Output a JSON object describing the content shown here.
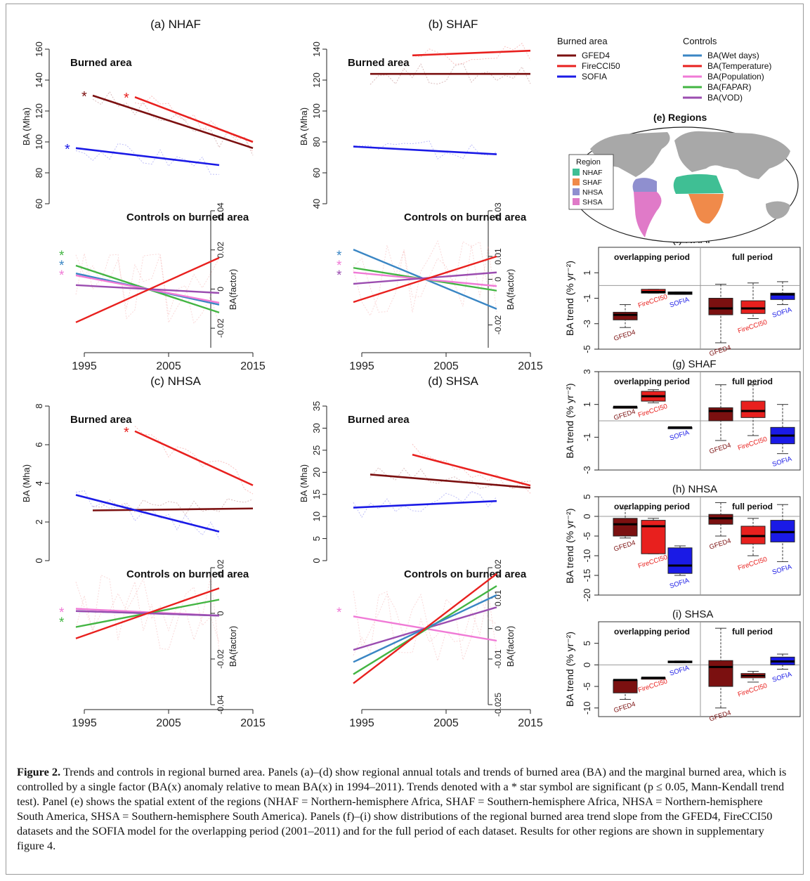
{
  "figure": {
    "caption_label": "Figure 2.",
    "caption_text": " Trends and controls in regional burned area. Panels (a)–(d) show regional annual totals and trends of burned area (BA) and the marginal burned area, which is controlled by a single factor (BA(x) anomaly relative to mean BA(x) in 1994–2011). Trends denoted with a * star symbol are significant (p ≤ 0.05, Mann-Kendall trend test). Panel (e) shows the spatial extent of the regions (NHAF = Northern-hemisphere Africa, SHAF = Southern-hemisphere Africa, NHSA = Northern-hemisphere South America, SHSA = Southern-hemisphere South America). Panels (f)–(i) show distributions of the regional burned area trend slope from the GFED4, FireCCI50 datasets and the SOFIA model for the overlapping period (2001–2011) and for the full period of each dataset. Results for other regions are shown in supplementary figure 4."
  },
  "legend": {
    "burned_title": "Burned area",
    "controls_title": "Controls",
    "burned_items": [
      {
        "label": "GFED4",
        "color": "#7b1010"
      },
      {
        "label": "FireCCI50",
        "color": "#e8201e"
      },
      {
        "label": "SOFIA",
        "color": "#1a1ae6"
      }
    ],
    "control_items": [
      {
        "label": "BA(Wet days)",
        "color": "#3a86c4"
      },
      {
        "label": "BA(Temperature)",
        "color": "#e8201e"
      },
      {
        "label": "BA(Population)",
        "color": "#f07ad6"
      },
      {
        "label": "BA(FAPAR)",
        "color": "#43b543"
      },
      {
        "label": "BA(VOD)",
        "color": "#9b4db0"
      }
    ]
  },
  "map": {
    "title": "(e) Regions",
    "legend_title": "Region",
    "regions": [
      {
        "label": "NHAF",
        "color": "#3fbf94"
      },
      {
        "label": "SHAF",
        "color": "#f08a4a"
      },
      {
        "label": "NHSA",
        "color": "#8f8fcf"
      },
      {
        "label": "SHSA",
        "color": "#e07ac8"
      }
    ]
  },
  "chart_data": [
    {
      "id": "a",
      "type": "line",
      "title": "(a) NHAF",
      "xlabel": "",
      "ylabel": "BA (Mha)",
      "ylabel2": "BA(factor)",
      "top_label": "Burned area",
      "bottom_label": "Controls on burned area",
      "x_ticks": [
        "1995",
        "2005",
        "2015"
      ],
      "ylim": [
        60,
        160
      ],
      "y_ticks": [
        "60",
        "80",
        "100",
        "120",
        "140",
        "160"
      ],
      "ylim2": [
        -0.03,
        0.04
      ],
      "y2_ticks": [
        "-0.02",
        "0",
        "0.02",
        "0.04"
      ],
      "trends": [
        {
          "series": "GFED4",
          "x": [
            1996,
            2015
          ],
          "y": [
            130,
            96
          ],
          "significant": true
        },
        {
          "series": "FireCCI50",
          "x": [
            2001,
            2015
          ],
          "y": [
            129,
            100
          ],
          "significant": true
        },
        {
          "series": "SOFIA",
          "x": [
            1994,
            2011
          ],
          "y": [
            96,
            85
          ],
          "significant": true
        }
      ],
      "control_trends": [
        {
          "series": "BA(FAPAR)",
          "x": [
            1994,
            2011
          ],
          "y": [
            0.012,
            -0.012
          ],
          "significant": true
        },
        {
          "series": "BA(Wet days)",
          "x": [
            1994,
            2011
          ],
          "y": [
            0.008,
            -0.008
          ],
          "significant": true
        },
        {
          "series": "BA(Population)",
          "x": [
            1994,
            2011
          ],
          "y": [
            0.007,
            -0.007
          ],
          "significant": true
        },
        {
          "series": "BA(VOD)",
          "x": [
            1994,
            2011
          ],
          "y": [
            0.002,
            -0.002
          ],
          "significant": false
        },
        {
          "series": "BA(Temperature)",
          "x": [
            1994,
            2011
          ],
          "y": [
            -0.017,
            0.016
          ],
          "significant": false
        }
      ]
    },
    {
      "id": "b",
      "type": "line",
      "title": "(b) SHAF",
      "xlabel": "",
      "ylabel": "BA (Mha)",
      "ylabel2": "BA(factor)",
      "top_label": "Burned area",
      "bottom_label": "Controls on burned area",
      "x_ticks": [
        "1995",
        "2005",
        "2015"
      ],
      "ylim": [
        40,
        140
      ],
      "y_ticks": [
        "40",
        "60",
        "80",
        "100",
        "120",
        "140"
      ],
      "ylim2": [
        -0.03,
        0.03
      ],
      "y2_ticks": [
        "-0.02",
        "0",
        "0.01",
        "0.03"
      ],
      "trends": [
        {
          "series": "GFED4",
          "x": [
            1996,
            2015
          ],
          "y": [
            124,
            124
          ],
          "significant": false
        },
        {
          "series": "FireCCI50",
          "x": [
            2001,
            2015
          ],
          "y": [
            136,
            139
          ],
          "significant": false
        },
        {
          "series": "SOFIA",
          "x": [
            1994,
            2011
          ],
          "y": [
            77,
            72
          ],
          "significant": false
        }
      ],
      "control_trends": [
        {
          "series": "BA(Wet days)",
          "x": [
            1994,
            2011
          ],
          "y": [
            0.013,
            -0.013
          ],
          "significant": true
        },
        {
          "series": "BA(FAPAR)",
          "x": [
            1994,
            2011
          ],
          "y": [
            0.005,
            -0.005
          ],
          "significant": false
        },
        {
          "series": "BA(Population)",
          "x": [
            1994,
            2011
          ],
          "y": [
            0.003,
            -0.003
          ],
          "significant": true
        },
        {
          "series": "BA(VOD)",
          "x": [
            1994,
            2011
          ],
          "y": [
            -0.002,
            0.003
          ],
          "significant": true
        },
        {
          "series": "BA(Temperature)",
          "x": [
            1994,
            2011
          ],
          "y": [
            -0.01,
            0.01
          ],
          "significant": false
        }
      ]
    },
    {
      "id": "c",
      "type": "line",
      "title": "(c) NHSA",
      "xlabel": "",
      "ylabel": "BA (Mha)",
      "ylabel2": "BA(factor)",
      "top_label": "Burned area",
      "bottom_label": "Controls on burned area",
      "x_ticks": [
        "1995",
        "2005",
        "2015"
      ],
      "ylim": [
        0,
        8
      ],
      "y_ticks": [
        "0",
        "2",
        "4",
        "6",
        "8"
      ],
      "ylim2": [
        -0.04,
        0.02
      ],
      "y2_ticks": [
        "-0.04",
        "-0.02",
        "0",
        "0.02"
      ],
      "trends": [
        {
          "series": "GFED4",
          "x": [
            1996,
            2015
          ],
          "y": [
            2.6,
            2.7
          ],
          "significant": false
        },
        {
          "series": "FireCCI50",
          "x": [
            2001,
            2015
          ],
          "y": [
            6.7,
            3.9
          ],
          "significant": true
        },
        {
          "series": "SOFIA",
          "x": [
            1994,
            2011
          ],
          "y": [
            3.4,
            1.5
          ],
          "significant": false
        }
      ],
      "control_trends": [
        {
          "series": "BA(Population)",
          "x": [
            1994,
            2011
          ],
          "y": [
            0.002,
            -0.001
          ],
          "significant": true
        },
        {
          "series": "BA(FAPAR)",
          "x": [
            1994,
            2011
          ],
          "y": [
            -0.006,
            0.006
          ],
          "significant": true
        },
        {
          "series": "BA(Wet days)",
          "x": [
            1994,
            2011
          ],
          "y": [
            0.001,
            -0.001
          ],
          "significant": false
        },
        {
          "series": "BA(VOD)",
          "x": [
            1994,
            2011
          ],
          "y": [
            0.001,
            -0.001
          ],
          "significant": false
        },
        {
          "series": "BA(Temperature)",
          "x": [
            1994,
            2011
          ],
          "y": [
            -0.011,
            0.011
          ],
          "significant": false
        }
      ]
    },
    {
      "id": "d",
      "type": "line",
      "title": "(d) SHSA",
      "xlabel": "",
      "ylabel": "BA (Mha)",
      "ylabel2": "BA(factor)",
      "top_label": "Burned area",
      "bottom_label": "Controls on burned area",
      "x_ticks": [
        "1995",
        "2005",
        "2015"
      ],
      "ylim": [
        0,
        35
      ],
      "y_ticks": [
        "0",
        "5",
        "10",
        "15",
        "20",
        "25",
        "30",
        "35"
      ],
      "ylim2": [
        -0.025,
        0.02
      ],
      "y2_ticks": [
        "-0.025",
        "-0.01",
        "0",
        "0.01",
        "0.02"
      ],
      "trends": [
        {
          "series": "GFED4",
          "x": [
            1996,
            2015
          ],
          "y": [
            19.5,
            16.5
          ],
          "significant": false
        },
        {
          "series": "FireCCI50",
          "x": [
            2001,
            2015
          ],
          "y": [
            24,
            17
          ],
          "significant": false
        },
        {
          "series": "SOFIA",
          "x": [
            1994,
            2011
          ],
          "y": [
            12,
            13.5
          ],
          "significant": false
        }
      ],
      "control_trends": [
        {
          "series": "BA(Population)",
          "x": [
            1994,
            2011
          ],
          "y": [
            0.004,
            -0.004
          ],
          "significant": true
        },
        {
          "series": "BA(VOD)",
          "x": [
            1994,
            2011
          ],
          "y": [
            -0.007,
            0.007
          ],
          "significant": false
        },
        {
          "series": "BA(FAPAR)",
          "x": [
            1994,
            2011
          ],
          "y": [
            -0.015,
            0.014
          ],
          "significant": false
        },
        {
          "series": "BA(Wet days)",
          "x": [
            1994,
            2011
          ],
          "y": [
            -0.011,
            0.011
          ],
          "significant": false
        },
        {
          "series": "BA(Temperature)",
          "x": [
            1994,
            2011
          ],
          "y": [
            -0.018,
            0.018
          ],
          "significant": false
        }
      ]
    },
    {
      "id": "f",
      "type": "box",
      "title": "(f) NHAF",
      "ylabel": "BA trend (% yr⁻²)",
      "left_label": "overlapping period",
      "right_label": "full period",
      "ylim": [
        -5,
        3
      ],
      "y_ticks": [
        "-5",
        "-3",
        "-1",
        "1"
      ],
      "boxes": [
        {
          "name": "GFED4",
          "group": "overlap",
          "color": "#7b1010",
          "min": -3.3,
          "q1": -2.7,
          "median": -2.3,
          "q3": -2.1,
          "max": -1.5
        },
        {
          "name": "FireCCI50",
          "group": "overlap",
          "color": "#e8201e",
          "min": -0.6,
          "q1": -0.6,
          "median": -0.5,
          "q3": -0.3,
          "max": -0.3
        },
        {
          "name": "SOFIA",
          "group": "overlap",
          "color": "#1a1ae6",
          "min": -0.7,
          "q1": -0.7,
          "median": -0.6,
          "q3": -0.5,
          "max": -0.5
        },
        {
          "name": "GFED4",
          "group": "full",
          "color": "#7b1010",
          "min": -4.5,
          "q1": -2.3,
          "median": -1.8,
          "q3": -1.0,
          "max": 0.1
        },
        {
          "name": "FireCCI50",
          "group": "full",
          "color": "#e8201e",
          "min": -2.6,
          "q1": -2.2,
          "median": -1.8,
          "q3": -1.2,
          "max": 0.2
        },
        {
          "name": "SOFIA",
          "group": "full",
          "color": "#1a1ae6",
          "min": -1.5,
          "q1": -1.1,
          "median": -0.7,
          "q3": -0.6,
          "max": 0.3
        }
      ]
    },
    {
      "id": "g",
      "type": "box",
      "title": "(g) SHAF",
      "ylabel": "BA trend (% yr⁻²)",
      "left_label": "overlapping period",
      "right_label": "full period",
      "ylim": [
        -3,
        3
      ],
      "y_ticks": [
        "-3",
        "-1",
        "1",
        "3"
      ],
      "boxes": [
        {
          "name": "GFED4",
          "group": "overlap",
          "color": "#7b1010",
          "min": 0.85,
          "q1": 0.85,
          "median": 0.85,
          "q3": 0.85,
          "max": 0.85
        },
        {
          "name": "FireCCI50",
          "group": "overlap",
          "color": "#e8201e",
          "min": 1.1,
          "q1": 1.2,
          "median": 1.5,
          "q3": 1.8,
          "max": 1.9
        },
        {
          "name": "SOFIA",
          "group": "overlap",
          "color": "#1a1ae6",
          "min": -0.4,
          "q1": -0.4,
          "median": -0.4,
          "q3": -0.4,
          "max": -0.4
        },
        {
          "name": "GFED4",
          "group": "full",
          "color": "#7b1010",
          "min": -1.2,
          "q1": 0.0,
          "median": 0.6,
          "q3": 0.8,
          "max": 2.2
        },
        {
          "name": "FireCCI50",
          "group": "full",
          "color": "#e8201e",
          "min": -0.9,
          "q1": 0.2,
          "median": 0.6,
          "q3": 1.2,
          "max": 2.2
        },
        {
          "name": "SOFIA",
          "group": "full",
          "color": "#1a1ae6",
          "min": -2.0,
          "q1": -1.4,
          "median": -0.9,
          "q3": -0.4,
          "max": 1.0
        }
      ]
    },
    {
      "id": "h",
      "type": "box",
      "title": "(h) NHSA",
      "ylabel": "BA trend (% yr⁻²)",
      "left_label": "overlapping period",
      "right_label": "full period",
      "ylim": [
        -20,
        5
      ],
      "y_ticks": [
        "-20",
        "-15",
        "-10",
        "-5",
        "0",
        "5"
      ],
      "boxes": [
        {
          "name": "GFED4",
          "group": "overlap",
          "color": "#7b1010",
          "min": -5.5,
          "q1": -5,
          "median": -2,
          "q3": -0.5,
          "max": 2
        },
        {
          "name": "FireCCI50",
          "group": "overlap",
          "color": "#e8201e",
          "min": -9.5,
          "q1": -9.5,
          "median": -2.5,
          "q3": -1,
          "max": -0.5
        },
        {
          "name": "SOFIA",
          "group": "overlap",
          "color": "#1a1ae6",
          "min": -15,
          "q1": -14.5,
          "median": -12.5,
          "q3": -8,
          "max": -7.5
        },
        {
          "name": "GFED4",
          "group": "full",
          "color": "#7b1010",
          "min": -5,
          "q1": -2,
          "median": -0.5,
          "q3": 0.5,
          "max": 3.5
        },
        {
          "name": "FireCCI50",
          "group": "full",
          "color": "#e8201e",
          "min": -10,
          "q1": -7,
          "median": -5,
          "q3": -2.5,
          "max": -0.5
        },
        {
          "name": "SOFIA",
          "group": "full",
          "color": "#1a1ae6",
          "min": -11.5,
          "q1": -6.5,
          "median": -4,
          "q3": -1,
          "max": 3
        }
      ]
    },
    {
      "id": "i",
      "type": "box",
      "title": "(i) SHSA",
      "ylabel": "BA trend (% yr⁻²)",
      "left_label": "overlapping period",
      "right_label": "full period",
      "ylim": [
        -12,
        10
      ],
      "y_ticks": [
        "-10",
        "-5",
        "0",
        "5"
      ],
      "boxes": [
        {
          "name": "GFED4",
          "group": "overlap",
          "color": "#7b1010",
          "min": -8,
          "q1": -6.5,
          "median": -3.5,
          "q3": -3.5,
          "max": -3.5
        },
        {
          "name": "FireCCI50",
          "group": "overlap",
          "color": "#e8201e",
          "min": -3,
          "q1": -3,
          "median": -3,
          "q3": -3,
          "max": -3
        },
        {
          "name": "SOFIA",
          "group": "overlap",
          "color": "#1a1ae6",
          "min": 0.5,
          "q1": 0.5,
          "median": 0.7,
          "q3": 0.9,
          "max": 0.9
        },
        {
          "name": "GFED4",
          "group": "full",
          "color": "#7b1010",
          "min": -10,
          "q1": -5,
          "median": -0.5,
          "q3": 1,
          "max": 8.5
        },
        {
          "name": "FireCCI50",
          "group": "full",
          "color": "#e8201e",
          "min": -4,
          "q1": -3,
          "median": -2.5,
          "q3": -2,
          "max": -1.5
        },
        {
          "name": "SOFIA",
          "group": "full",
          "color": "#1a1ae6",
          "min": -1,
          "q1": 0,
          "median": 0.8,
          "q3": 1.8,
          "max": 2.5
        }
      ]
    }
  ]
}
